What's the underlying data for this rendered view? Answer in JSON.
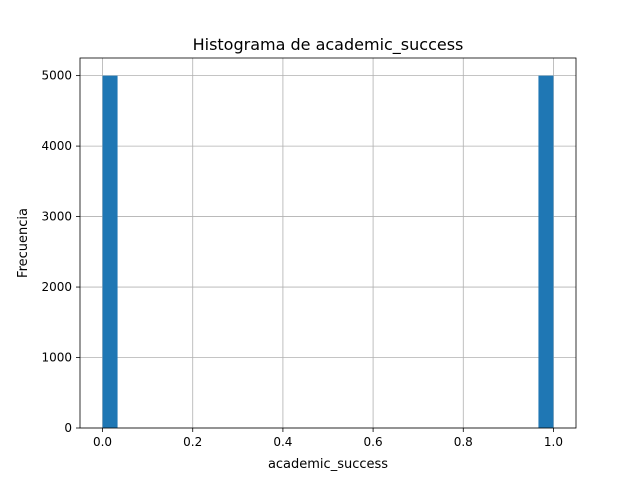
{
  "chart_data": {
    "type": "bar",
    "title": "Histograma de academic_success",
    "xlabel": "academic_success",
    "ylabel": "Frecuencia",
    "xlim": [
      -0.05,
      1.05
    ],
    "ylim": [
      0,
      5250
    ],
    "grid": true,
    "bar_color": "#1f77b4",
    "bins": 30,
    "bars": [
      {
        "x0": 0.0,
        "x1": 0.0333,
        "value": 5000
      },
      {
        "x0": 0.9667,
        "x1": 1.0,
        "value": 5000
      }
    ],
    "x_ticks": [
      {
        "value": 0.0,
        "label": "0.0"
      },
      {
        "value": 0.2,
        "label": "0.2"
      },
      {
        "value": 0.4,
        "label": "0.4"
      },
      {
        "value": 0.6,
        "label": "0.6"
      },
      {
        "value": 0.8,
        "label": "0.8"
      },
      {
        "value": 1.0,
        "label": "1.0"
      }
    ],
    "y_ticks": [
      {
        "value": 0,
        "label": "0"
      },
      {
        "value": 1000,
        "label": "1000"
      },
      {
        "value": 2000,
        "label": "2000"
      },
      {
        "value": 3000,
        "label": "3000"
      },
      {
        "value": 4000,
        "label": "4000"
      },
      {
        "value": 5000,
        "label": "5000"
      }
    ]
  }
}
